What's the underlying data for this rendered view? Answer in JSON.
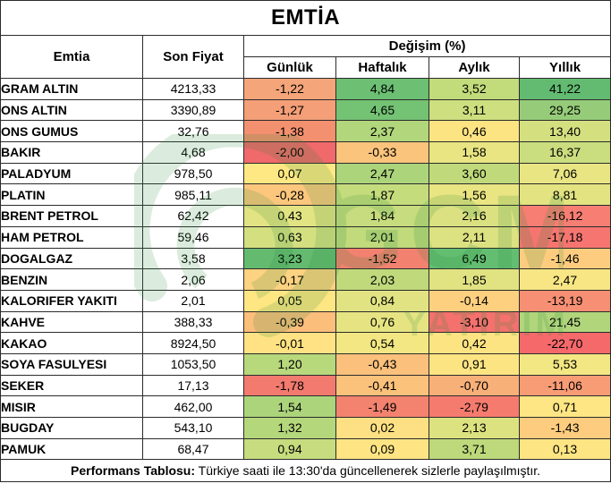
{
  "title": "EMTİA",
  "headers": {
    "commodity": "Emtia",
    "last_price": "Son Fiyat",
    "change_group": "Değişim (%)",
    "daily": "Günlük",
    "weekly": "Haftalık",
    "monthly": "Aylık",
    "yearly": "Yıllık"
  },
  "rows": [
    {
      "name": "GRAM ALTIN",
      "price": "4213,33",
      "daily": "-1,22",
      "weekly": "4,84",
      "monthly": "3,52",
      "yearly": "41,22",
      "colors": [
        "#f4a57a",
        "#6cbf73",
        "#c2db7b",
        "#62bb71"
      ]
    },
    {
      "name": "ONS ALTIN",
      "price": "3390,89",
      "daily": "-1,27",
      "weekly": "4,65",
      "monthly": "3,11",
      "yearly": "29,25",
      "colors": [
        "#f49f78",
        "#74c274",
        "#cddf7f",
        "#96cc79"
      ]
    },
    {
      "name": "ONS GUMUS",
      "price": "32,76",
      "daily": "-1,38",
      "weekly": "2,37",
      "monthly": "0,46",
      "yearly": "13,40",
      "colors": [
        "#f3906f",
        "#b1d67b",
        "#fde483",
        "#d4e080"
      ]
    },
    {
      "name": "BAKIR",
      "price": "4,68",
      "daily": "-2,00",
      "weekly": "-0,33",
      "monthly": "1,58",
      "yearly": "16,37",
      "colors": [
        "#f0696b",
        "#fbc47c",
        "#e8e582",
        "#cadd7f"
      ]
    },
    {
      "name": "PALADYUM",
      "price": "978,50",
      "daily": "0,07",
      "weekly": "2,47",
      "monthly": "3,60",
      "yearly": "7,06",
      "colors": [
        "#fee883",
        "#acd47b",
        "#c0da7b",
        "#e9e583"
      ]
    },
    {
      "name": "PLATIN",
      "price": "985,11",
      "daily": "-0,28",
      "weekly": "1,87",
      "monthly": "1,56",
      "yearly": "8,81",
      "colors": [
        "#fcc77d",
        "#c5dc7d",
        "#e8e582",
        "#e3e382"
      ]
    },
    {
      "name": "BRENT PETROL",
      "price": "62,42",
      "daily": "0,43",
      "weekly": "1,84",
      "monthly": "2,16",
      "yearly": "-16,12",
      "colors": [
        "#e2e382",
        "#c7dc7e",
        "#dbe181",
        "#f67e73"
      ]
    },
    {
      "name": "HAM PETROL",
      "price": "59,46",
      "daily": "0,63",
      "weekly": "2,01",
      "monthly": "2,11",
      "yearly": "-17,18",
      "colors": [
        "#d4e080",
        "#c0da7c",
        "#dce181",
        "#f67570"
      ]
    },
    {
      "name": "DOGALGAZ",
      "price": "3,58",
      "daily": "3,23",
      "weekly": "-1,52",
      "monthly": "6,49",
      "yearly": "-1,46",
      "colors": [
        "#64bb6f",
        "#f3816f",
        "#63be71",
        "#fecc7e"
      ]
    },
    {
      "name": "BENZIN",
      "price": "2,06",
      "daily": "-0,17",
      "weekly": "2,03",
      "monthly": "1,85",
      "yearly": "2,47",
      "colors": [
        "#fdd280",
        "#bfd97b",
        "#e1e382",
        "#f7e683"
      ]
    },
    {
      "name": "KALORIFER YAKITI",
      "price": "2,01",
      "daily": "0,05",
      "weekly": "0,84",
      "monthly": "-0,14",
      "yearly": "-13,19",
      "colors": [
        "#fee683",
        "#e1e382",
        "#fdd080",
        "#f68f73"
      ]
    },
    {
      "name": "KAHVE",
      "price": "388,33",
      "daily": "-0,39",
      "weekly": "0,76",
      "monthly": "-3,10",
      "yearly": "21,45",
      "colors": [
        "#fbbe7b",
        "#e6e482",
        "#f4716e",
        "#b0d57b"
      ]
    },
    {
      "name": "KAKAO",
      "price": "8924,50",
      "daily": "-0,01",
      "weekly": "0,54",
      "monthly": "0,42",
      "yearly": "-22,70",
      "colors": [
        "#fee283",
        "#f2e783",
        "#fde483",
        "#f5696b"
      ]
    },
    {
      "name": "SOYA FASULYESI",
      "price": "1053,50",
      "daily": "1,20",
      "weekly": "-0,43",
      "monthly": "0,91",
      "yearly": "5,53",
      "colors": [
        "#b8d87c",
        "#fbc17c",
        "#fde483",
        "#f3e783"
      ]
    },
    {
      "name": "SEKER",
      "price": "17,13",
      "daily": "-1,78",
      "weekly": "-0,41",
      "monthly": "-0,70",
      "yearly": "-11,06",
      "colors": [
        "#f27a6e",
        "#fbc27c",
        "#f8b079",
        "#f89c76"
      ]
    },
    {
      "name": "MISIR",
      "price": "462,00",
      "daily": "1,54",
      "weekly": "-1,49",
      "monthly": "-2,79",
      "yearly": "0,71",
      "colors": [
        "#acd47b",
        "#f3836f",
        "#f57b6f",
        "#fde683"
      ]
    },
    {
      "name": "BUGDAY",
      "price": "543,10",
      "daily": "1,32",
      "weekly": "0,02",
      "monthly": "2,13",
      "yearly": "-1,43",
      "colors": [
        "#b5d77c",
        "#fde083",
        "#dde281",
        "#fecc7e"
      ]
    },
    {
      "name": "PAMUK",
      "price": "68,47",
      "daily": "0,94",
      "weekly": "0,09",
      "monthly": "3,71",
      "yearly": "0,13",
      "colors": [
        "#c6dc7e",
        "#fee483",
        "#bdd97b",
        "#fde583"
      ]
    }
  ],
  "footer": {
    "label": "Performans Tablosu:",
    "text": " Türkiye saati ile 13:30'da güncellenerek sizlerle paylaşılmıştır."
  },
  "watermark": {
    "letters": "GCM",
    "sub": "YATIRIM",
    "icon": "gcm-logo-watermark"
  }
}
